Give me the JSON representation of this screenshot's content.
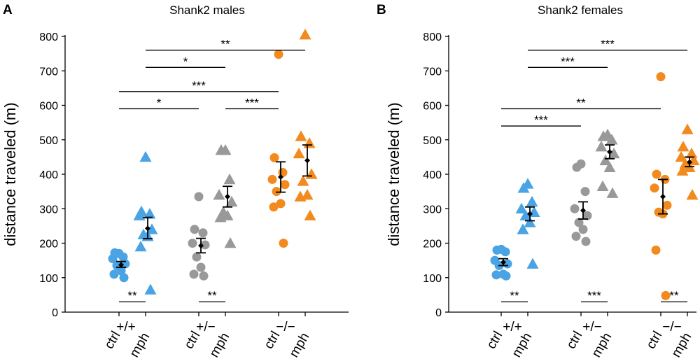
{
  "chart_data": [
    {
      "panel_label": "A",
      "type": "scatter",
      "title": "Shank2 males",
      "ylabel": "distance traveled (m)",
      "ylim": [
        0,
        800
      ],
      "yticks": [
        "0",
        "100",
        "200",
        "300",
        "400",
        "500",
        "600",
        "700",
        "800"
      ],
      "genotypes": [
        "+/+",
        "+/−",
        "−/−"
      ],
      "treatments": [
        "ctrl",
        "mph"
      ],
      "colors": {
        "+/+": "#4aa3e3",
        "+/−": "#999999",
        "−/−": "#f28a1e"
      },
      "groups": [
        {
          "genotype": "+/+",
          "treatment": "ctrl",
          "marker": "circle",
          "values": [
            170,
            172,
            160,
            155,
            140,
            135,
            120,
            110,
            100
          ],
          "mean": 137,
          "ci": [
            130,
            147
          ]
        },
        {
          "genotype": "+/+",
          "treatment": "mph",
          "marker": "triangle",
          "values": [
            450,
            292,
            285,
            280,
            240,
            225,
            220,
            190,
            65
          ],
          "mean": 243,
          "ci": [
            213,
            275
          ]
        },
        {
          "genotype": "+/−",
          "treatment": "ctrl",
          "marker": "circle",
          "values": [
            335,
            240,
            230,
            200,
            195,
            160,
            130,
            110,
            105
          ],
          "mean": 193,
          "ci": [
            172,
            214
          ]
        },
        {
          "genotype": "+/−",
          "treatment": "mph",
          "marker": "triangle",
          "values": [
            470,
            470,
            385,
            340,
            320,
            290,
            280,
            275,
            200
          ],
          "mean": 335,
          "ci": [
            305,
            365
          ]
        },
        {
          "genotype": "−/−",
          "treatment": "ctrl",
          "marker": "circle",
          "values": [
            748,
            448,
            405,
            385,
            370,
            350,
            315,
            305,
            200
          ],
          "mean": 392,
          "ci": [
            348,
            436
          ]
        },
        {
          "genotype": "−/−",
          "treatment": "mph",
          "marker": "triangle",
          "values": [
            805,
            510,
            490,
            460,
            400,
            380,
            340,
            335,
            280
          ],
          "mean": 440,
          "ci": [
            395,
            485
          ]
        }
      ],
      "brackets": [
        {
          "from": "+/+ mph",
          "to": "−/− mph",
          "y": 760,
          "label": "**"
        },
        {
          "from": "+/+ mph",
          "to": "+/− mph",
          "y": 710,
          "label": "*"
        },
        {
          "from": "+/+ ctrl",
          "to": "−/− ctrl",
          "y": 640,
          "label": "***"
        },
        {
          "from": "+/+ ctrl",
          "to": "+/− ctrl",
          "y": 590,
          "label": "*"
        },
        {
          "from": "+/− mph",
          "to": "−/− ctrl",
          "y": 590,
          "label": "***"
        },
        {
          "from": "+/+ ctrl",
          "to": "+/+ mph",
          "y": 30,
          "label": "**"
        },
        {
          "from": "+/− ctrl",
          "to": "+/− mph",
          "y": 30,
          "label": "**"
        }
      ]
    },
    {
      "panel_label": "B",
      "type": "scatter",
      "title": "Shank2 females",
      "ylabel": "distance traveled (m)",
      "ylim": [
        0,
        800
      ],
      "yticks": [
        "0",
        "100",
        "200",
        "300",
        "400",
        "500",
        "600",
        "700",
        "800"
      ],
      "genotypes": [
        "+/+",
        "+/−",
        "−/−"
      ],
      "treatments": [
        "ctrl",
        "mph"
      ],
      "colors": {
        "+/+": "#4aa3e3",
        "+/−": "#999999",
        "−/−": "#f28a1e"
      },
      "groups": [
        {
          "genotype": "+/+",
          "treatment": "ctrl",
          "marker": "circle",
          "values": [
            182,
            180,
            175,
            150,
            140,
            135,
            110,
            108,
            105
          ],
          "mean": 145,
          "ci": [
            135,
            155
          ]
        },
        {
          "genotype": "+/+",
          "treatment": "mph",
          "marker": "triangle",
          "values": [
            372,
            360,
            320,
            300,
            290,
            280,
            260,
            240,
            140
          ],
          "mean": 285,
          "ci": [
            265,
            305
          ]
        },
        {
          "genotype": "+/−",
          "treatment": "ctrl",
          "marker": "circle",
          "values": [
            430,
            420,
            350,
            300,
            280,
            260,
            240,
            220,
            205
          ],
          "mean": 295,
          "ci": [
            270,
            320
          ]
        },
        {
          "genotype": "+/−",
          "treatment": "mph",
          "marker": "triangle",
          "values": [
            515,
            510,
            500,
            480,
            460,
            440,
            420,
            365,
            345
          ],
          "mean": 465,
          "ci": [
            445,
            485
          ]
        },
        {
          "genotype": "−/−",
          "treatment": "ctrl",
          "marker": "circle",
          "values": [
            683,
            400,
            385,
            360,
            310,
            290,
            285,
            180,
            48
          ],
          "mean": 335,
          "ci": [
            285,
            385
          ]
        },
        {
          "genotype": "−/−",
          "treatment": "mph",
          "marker": "triangle",
          "values": [
            530,
            480,
            460,
            450,
            440,
            430,
            420,
            410,
            340
          ],
          "mean": 435,
          "ci": [
            422,
            450
          ]
        }
      ],
      "brackets": [
        {
          "from": "+/+ mph",
          "to": "−/− mph",
          "y": 760,
          "label": "***"
        },
        {
          "from": "+/+ mph",
          "to": "+/− mph",
          "y": 710,
          "label": "***"
        },
        {
          "from": "+/+ ctrl",
          "to": "−/− ctrl",
          "y": 590,
          "label": "**"
        },
        {
          "from": "+/+ ctrl",
          "to": "+/− ctrl",
          "y": 540,
          "label": "***"
        },
        {
          "from": "+/+ ctrl",
          "to": "+/+ mph",
          "y": 30,
          "label": "**"
        },
        {
          "from": "+/− ctrl",
          "to": "+/− mph",
          "y": 30,
          "label": "***"
        },
        {
          "from": "−/− ctrl",
          "to": "−/− mph",
          "y": 30,
          "label": "**"
        }
      ]
    }
  ]
}
